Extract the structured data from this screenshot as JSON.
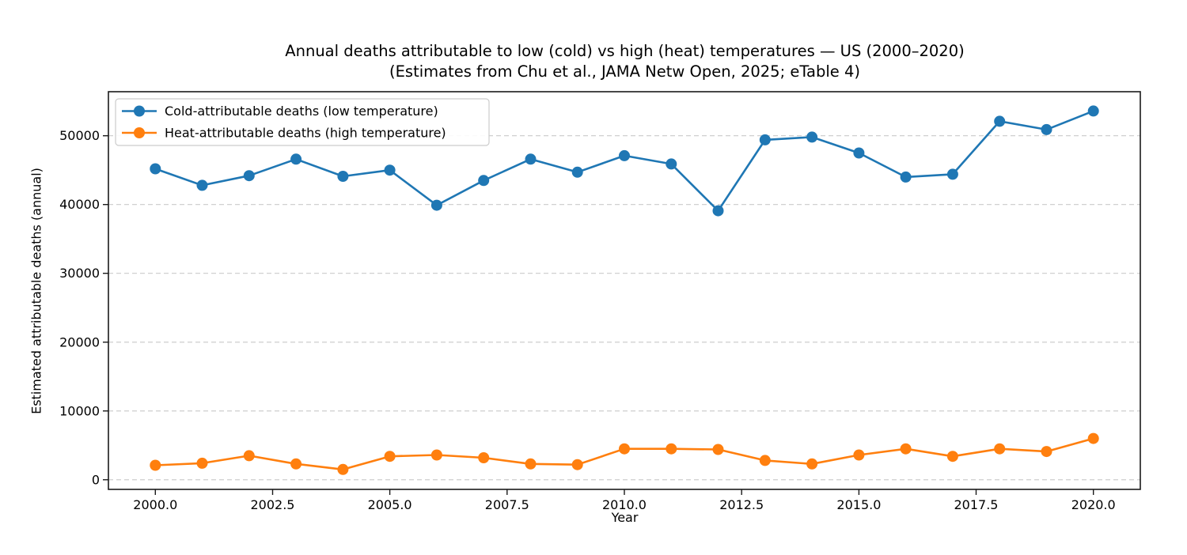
{
  "chart_data": {
    "type": "line",
    "title": "Annual deaths attributable to low (cold) vs high (heat) temperatures — US (2000–2020)",
    "subtitle": "(Estimates from Chu et al., JAMA Netw Open, 2025; eTable 4)",
    "xlabel": "Year",
    "ylabel": "Estimated attributable deaths (annual)",
    "x": [
      2000,
      2001,
      2002,
      2003,
      2004,
      2005,
      2006,
      2007,
      2008,
      2009,
      2010,
      2011,
      2012,
      2013,
      2014,
      2015,
      2016,
      2017,
      2018,
      2019,
      2020
    ],
    "series": [
      {
        "name": "Cold-attributable deaths (low temperature)",
        "color": "#1f77b4",
        "values": [
          45200,
          42800,
          44200,
          46600,
          44100,
          45000,
          39900,
          43500,
          46600,
          44700,
          47100,
          45900,
          39100,
          49400,
          49800,
          47500,
          44000,
          44400,
          52100,
          50900,
          53600
        ]
      },
      {
        "name": "Heat-attributable deaths (high temperature)",
        "color": "#ff7f0e",
        "values": [
          2100,
          2400,
          3500,
          2300,
          1500,
          3400,
          3600,
          3200,
          2300,
          2200,
          4500,
          4500,
          4400,
          2800,
          2300,
          3600,
          4500,
          3400,
          4500,
          4100,
          6000
        ]
      }
    ],
    "xticks": {
      "values": [
        2000.0,
        2002.5,
        2005.0,
        2007.5,
        2010.0,
        2012.5,
        2015.0,
        2017.5,
        2020.0
      ],
      "labels": [
        "2000.0",
        "2002.5",
        "2005.0",
        "2007.5",
        "2010.0",
        "2012.5",
        "2015.0",
        "2017.5",
        "2020.0"
      ]
    },
    "yticks": {
      "values": [
        0,
        10000,
        20000,
        30000,
        40000,
        50000
      ],
      "labels": [
        "0",
        "10000",
        "20000",
        "30000",
        "40000",
        "50000"
      ]
    },
    "xlim": [
      1999.0,
      2021.0
    ],
    "ylim": [
      -1400,
      56400
    ],
    "grid": "horizontal-dashed",
    "legend_position": "upper-left",
    "colors": {
      "grid": "#c9c9c9",
      "spine": "#1a1a1a",
      "tick_text": "#000000",
      "legend_border": "#cccccc",
      "background": "#ffffff"
    }
  }
}
